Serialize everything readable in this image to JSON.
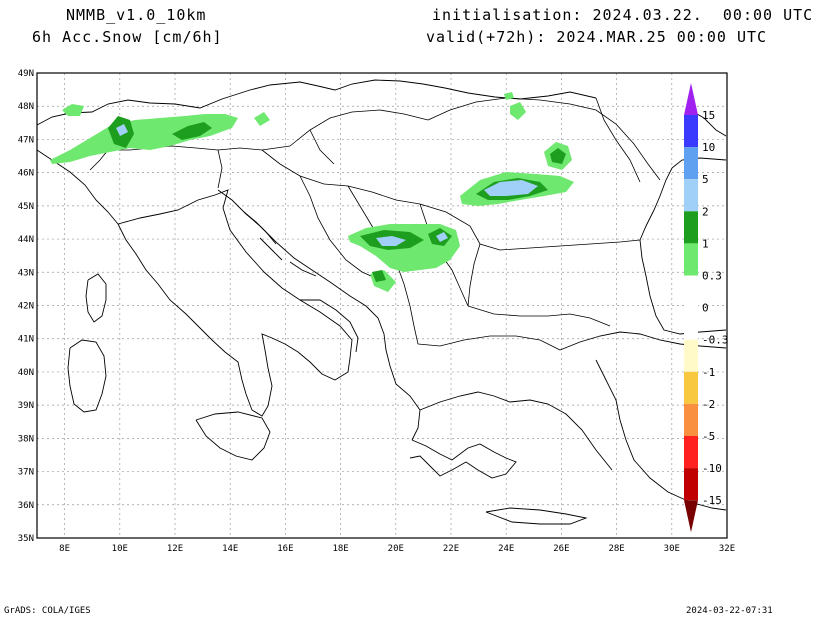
{
  "header": {
    "model": "NMMB_v1.0_10km",
    "field": "6h Acc.Snow [cm/6h]",
    "init": "initialisation: 2024.03.22.  00:00 UTC",
    "valid": "valid(+72h): 2024.MAR.25 00:00 UTC"
  },
  "footer": {
    "left": "GrADS: COLA/IGES",
    "right": "2024-03-22-07:31"
  },
  "axes": {
    "lat_labels": [
      "49N",
      "48N",
      "47N",
      "46N",
      "45N",
      "44N",
      "43N",
      "42N",
      "41N",
      "40N",
      "39N",
      "38N",
      "37N",
      "36N",
      "35N"
    ],
    "lon_labels": [
      "8E",
      "10E",
      "12E",
      "14E",
      "16E",
      "18E",
      "20E",
      "22E",
      "24E",
      "26E",
      "28E",
      "30E",
      "32E"
    ]
  },
  "legend": {
    "bands": [
      {
        "color": "#a020f0",
        "label": "15"
      },
      {
        "color": "#3a3aff",
        "label": "10"
      },
      {
        "color": "#5fa0f0",
        "label": "5"
      },
      {
        "color": "#a0d0f8",
        "label": "2"
      },
      {
        "color": "#1e9e1e",
        "label": "1"
      },
      {
        "color": "#6ee86e",
        "label": "0.3"
      },
      {
        "color": "#ffffff",
        "label": "0"
      },
      {
        "color": "#ffffff",
        "label": "-0.3"
      },
      {
        "color": "#fffac8",
        "label": "-1"
      },
      {
        "color": "#f8c840",
        "label": "-2"
      },
      {
        "color": "#f89040",
        "label": "-5"
      },
      {
        "color": "#ff2020",
        "label": "-10"
      },
      {
        "color": "#c00000",
        "label": "-15"
      },
      {
        "color": "#780000",
        "label": ""
      }
    ]
  }
}
